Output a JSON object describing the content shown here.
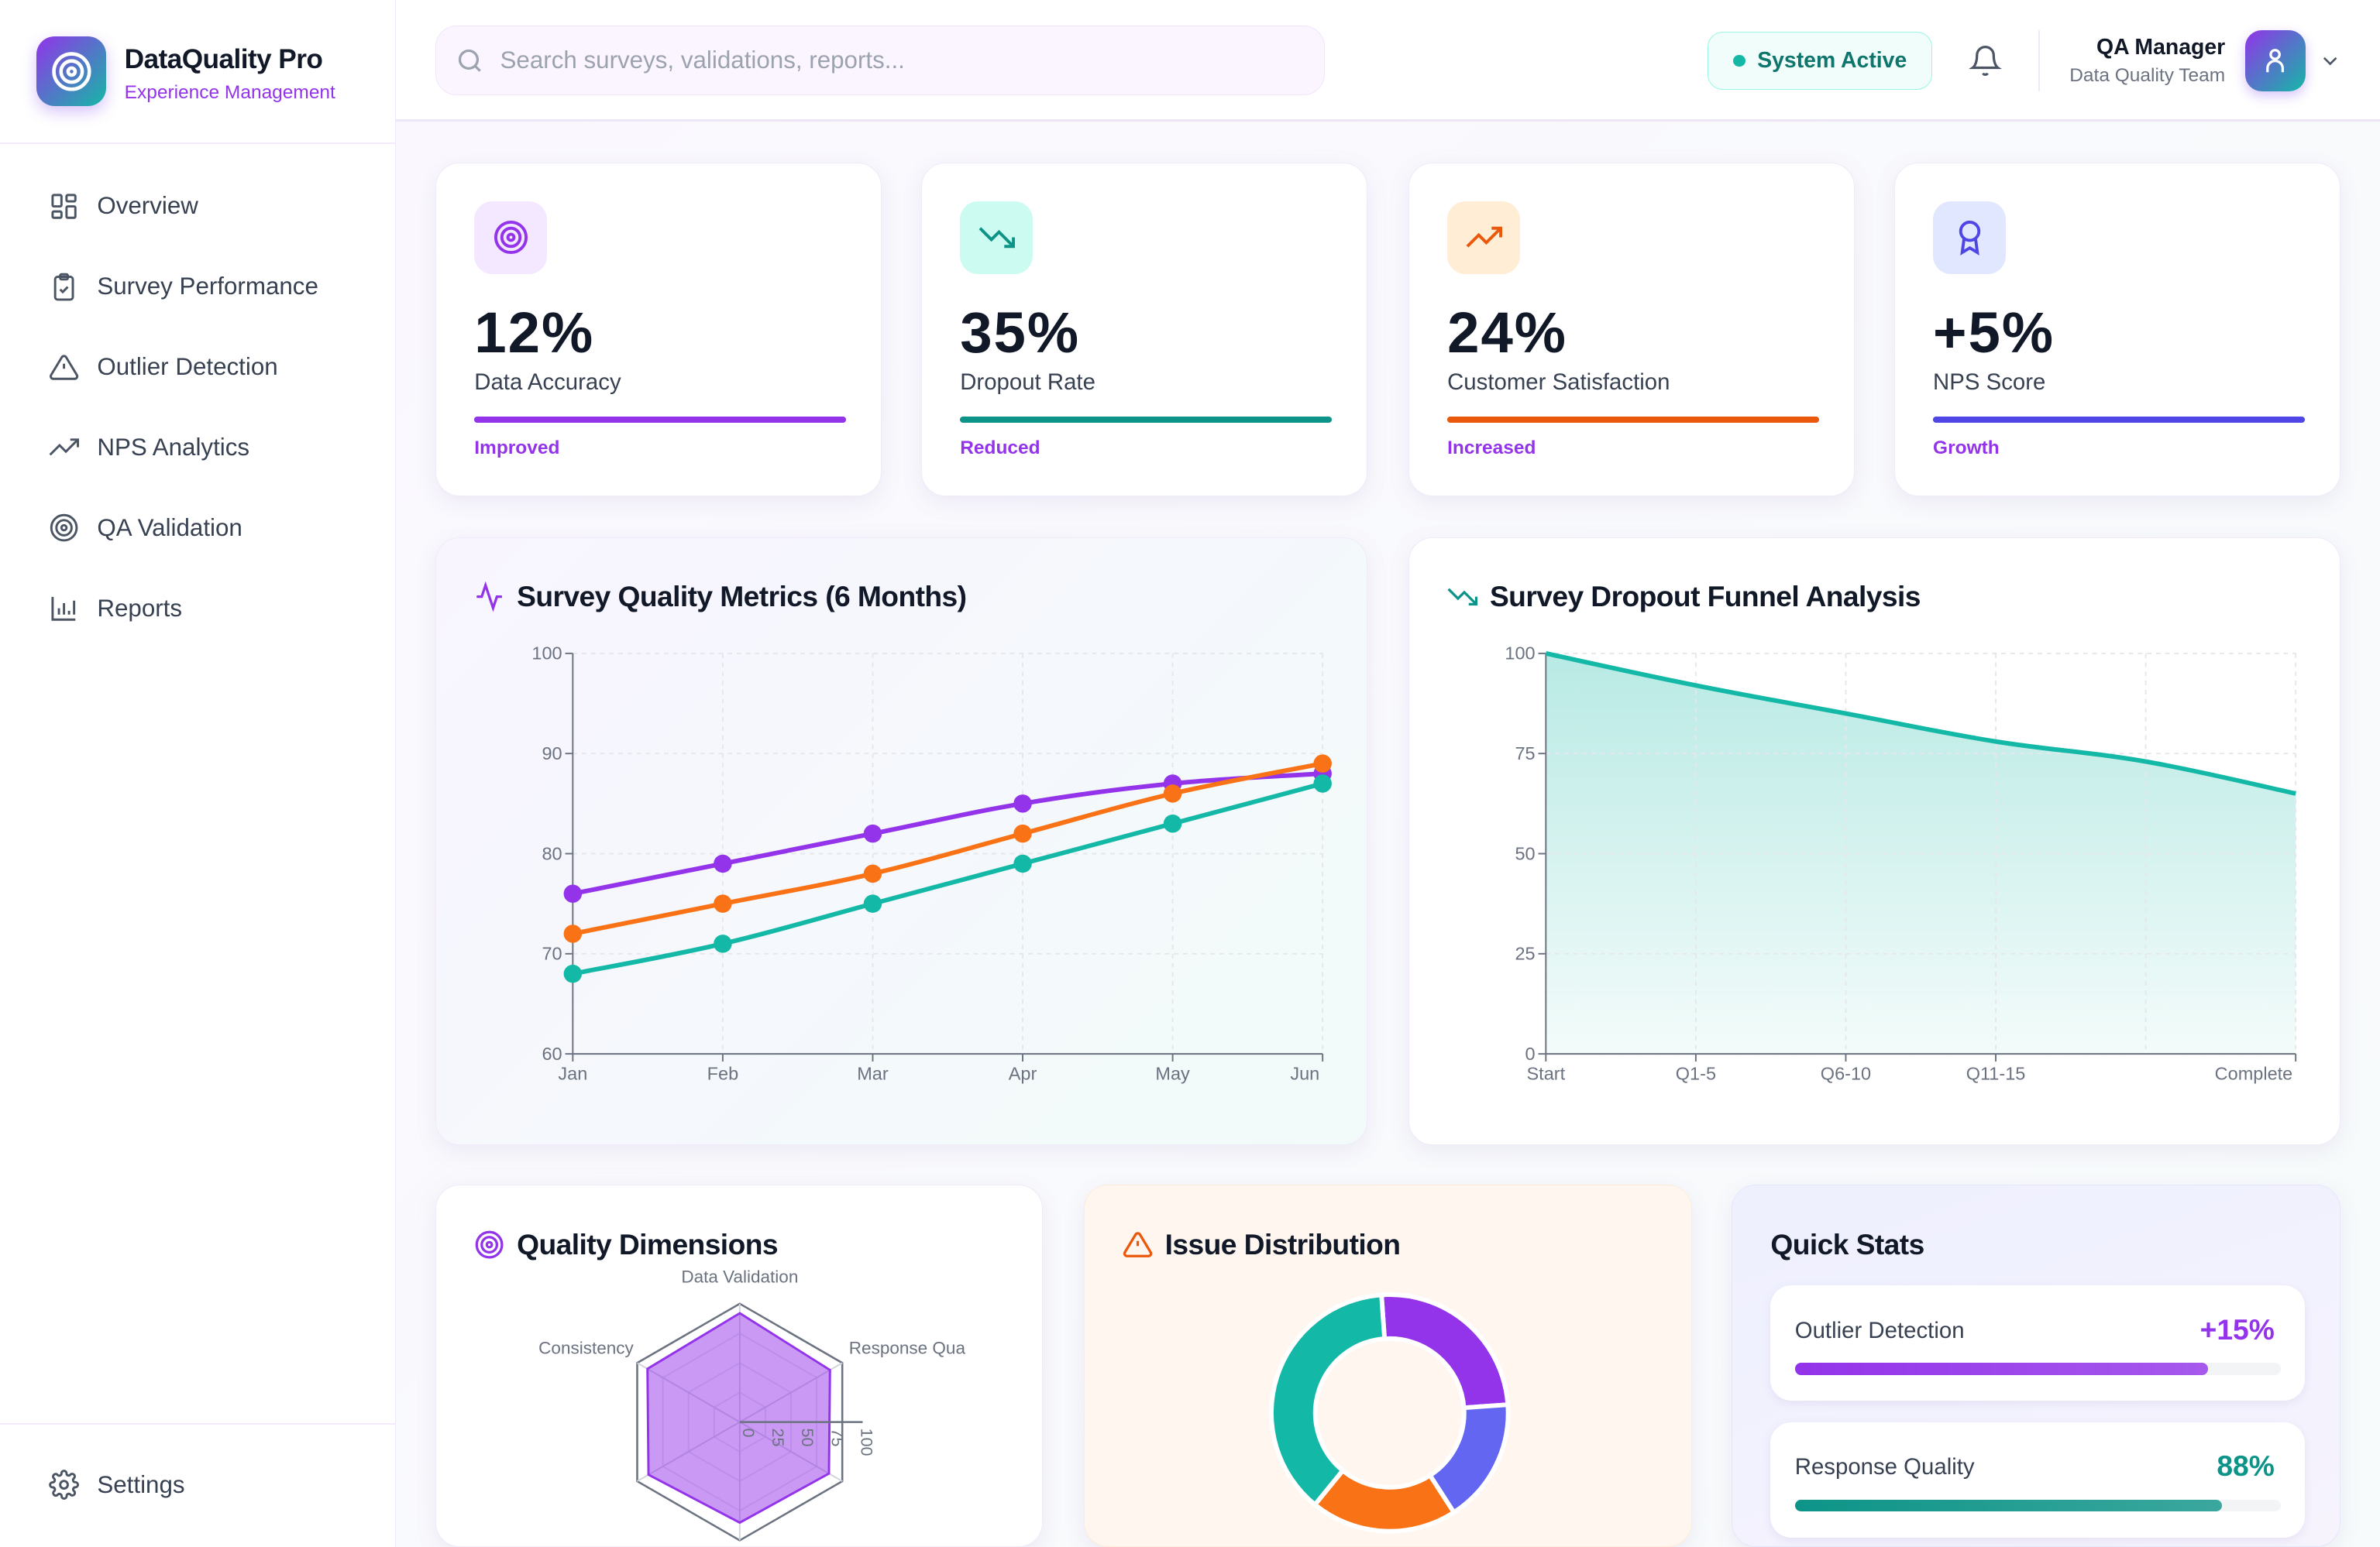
{
  "app": {
    "name": "DataQuality Pro",
    "subtitle": "Experience Management"
  },
  "sidebar": {
    "items": [
      {
        "label": "Overview",
        "icon": "grid-icon"
      },
      {
        "label": "Survey Performance",
        "icon": "clipboard-check-icon"
      },
      {
        "label": "Outlier Detection",
        "icon": "alert-triangle-icon"
      },
      {
        "label": "NPS Analytics",
        "icon": "trending-up-icon"
      },
      {
        "label": "QA Validation",
        "icon": "target-icon"
      },
      {
        "label": "Reports",
        "icon": "bar-chart-icon"
      }
    ],
    "settings": "Settings"
  },
  "header": {
    "search_placeholder": "Search surveys, validations, reports...",
    "status": "System Active",
    "user_name": "QA Manager",
    "user_team": "Data Quality Team"
  },
  "stats": [
    {
      "value": "12%",
      "label": "Data Accuracy",
      "trend": "Improved",
      "color": "#9333ea",
      "bg": "#f3e8ff",
      "icon": "target-icon"
    },
    {
      "value": "35%",
      "label": "Dropout Rate",
      "trend": "Reduced",
      "color": "#0d9488",
      "bg": "#ccfbf1",
      "icon": "trending-down-icon"
    },
    {
      "value": "24%",
      "label": "Customer Satisfaction",
      "trend": "Increased",
      "color": "#ea580c",
      "bg": "#ffedd5",
      "icon": "trending-up-icon"
    },
    {
      "value": "+5%",
      "label": "NPS Score",
      "trend": "Growth",
      "color": "#4f46e5",
      "bg": "#e0e7ff",
      "icon": "award-icon"
    }
  ],
  "panels": {
    "quality_title": "Survey Quality Metrics (6 Months)",
    "funnel_title": "Survey Dropout Funnel Analysis",
    "dims_title": "Quality Dimensions",
    "issues_title": "Issue Distribution",
    "quick_title": "Quick Stats"
  },
  "quick_stats": [
    {
      "label": "Outlier Detection",
      "value": "+15%",
      "percent": 85,
      "color": "#9333ea"
    },
    {
      "label": "Response Quality",
      "value": "88%",
      "percent": 88,
      "color": "#0d9488"
    }
  ],
  "chart_data": [
    {
      "type": "line",
      "categories": [
        "Jan",
        "Feb",
        "Mar",
        "Apr",
        "May",
        "Jun"
      ],
      "ylim": [
        60,
        100
      ],
      "yticks": [
        60,
        70,
        80,
        90,
        100
      ],
      "grid": true,
      "series": [
        {
          "color": "#9333ea",
          "values": [
            76,
            79,
            82,
            85,
            87,
            88
          ]
        },
        {
          "color": "#f97316",
          "values": [
            72,
            75,
            78,
            82,
            86,
            89
          ]
        },
        {
          "color": "#14b8a6",
          "values": [
            68,
            71,
            75,
            79,
            83,
            87
          ]
        }
      ]
    },
    {
      "type": "area",
      "categories": [
        "Start",
        "Q1-5",
        "Q6-10",
        "Q11-15",
        "",
        "Complete"
      ],
      "values": [
        100,
        92,
        85,
        78,
        73,
        65
      ],
      "ylim": [
        0,
        100
      ],
      "yticks": [
        0,
        25,
        50,
        75,
        100
      ],
      "grid": true,
      "color": "#14b8a6"
    },
    {
      "type": "radar",
      "axes": [
        "Data Validation",
        "Response Qua",
        "",
        "",
        "",
        "Consistency"
      ],
      "values": [
        92,
        88,
        87,
        85,
        89,
        90
      ],
      "rticks": [
        0,
        25,
        50,
        75,
        100
      ],
      "color": "#9333ea"
    },
    {
      "type": "pie",
      "donut": true,
      "values": [
        25,
        17,
        20,
        38
      ],
      "colors": [
        "#9333ea",
        "#6366f1",
        "#f97316",
        "#14b8a6"
      ]
    }
  ]
}
